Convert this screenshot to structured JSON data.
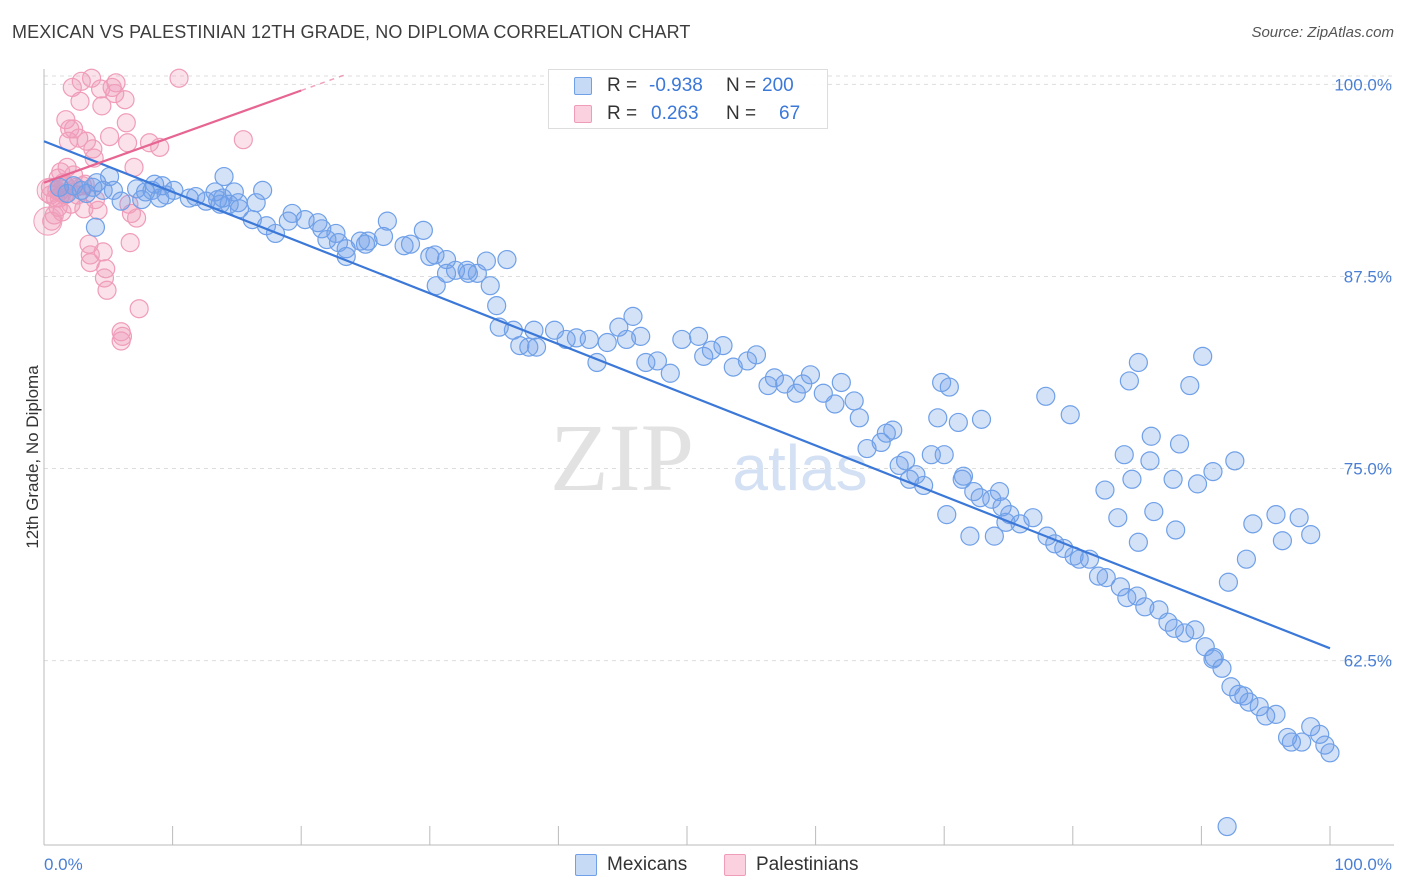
{
  "title": "MEXICAN VS PALESTINIAN 12TH GRADE, NO DIPLOMA CORRELATION CHART",
  "source": "Source: ZipAtlas.com",
  "watermark": {
    "zip": "ZIP",
    "atlas": "atlas"
  },
  "colors": {
    "mexicans": "#6fa0e8",
    "mexicans_line": "#3b78d8",
    "palestinians": "#f09cb9",
    "palestinians_line": "#e66592",
    "axis_text": "#4a7fd4",
    "grid": "#dddddd"
  },
  "stats": [
    {
      "r_label": "R =",
      "r_value": "-0.938",
      "n_label": "N =",
      "n_value": "200"
    },
    {
      "r_label": "R =",
      "r_value": "0.263",
      "n_label": "N =",
      "n_value": "67"
    }
  ],
  "legend": [
    "Mexicans",
    "Palestinians"
  ],
  "chart_data": {
    "type": "scatter",
    "title": "MEXICAN VS PALESTINIAN 12TH GRADE, NO DIPLOMA CORRELATION CHART",
    "xlabel": "",
    "ylabel": "12th Grade, No Diploma",
    "xlim": [
      0,
      100
    ],
    "ylim": [
      50.5,
      101
    ],
    "x_tick_labels": [
      "0.0%",
      "100.0%"
    ],
    "y_ticks": [
      62.5,
      75.0,
      87.5,
      100.0
    ],
    "y_tick_labels": [
      "62.5%",
      "75.0%",
      "87.5%",
      "100.0%"
    ],
    "grid": true,
    "legend_position": "bottom-center",
    "series": [
      {
        "name": "Mexicans",
        "r": -0.938,
        "n": 200,
        "trend": {
          "x": [
            0,
            100
          ],
          "y": [
            96.3,
            63.3
          ]
        },
        "points": [
          [
            1.2,
            93.3
          ],
          [
            1.8,
            92.9
          ],
          [
            2.3,
            93.4
          ],
          [
            2.9,
            93.1
          ],
          [
            3.3,
            92.9
          ],
          [
            3.8,
            93.3
          ],
          [
            4.1,
            93.6
          ],
          [
            4.6,
            93.1
          ],
          [
            5.1,
            94.0
          ],
          [
            4.0,
            90.7
          ],
          [
            5.4,
            93.1
          ],
          [
            6.0,
            92.4
          ],
          [
            7.2,
            93.2
          ],
          [
            7.6,
            92.5
          ],
          [
            7.9,
            93.0
          ],
          [
            8.4,
            93.1
          ],
          [
            8.6,
            93.5
          ],
          [
            9.0,
            92.6
          ],
          [
            9.2,
            93.4
          ],
          [
            10.1,
            93.1
          ],
          [
            9.5,
            92.8
          ],
          [
            11.3,
            92.6
          ],
          [
            11.8,
            92.7
          ],
          [
            12.6,
            92.4
          ],
          [
            13.3,
            93.0
          ],
          [
            13.9,
            92.6
          ],
          [
            13.5,
            92.5
          ],
          [
            14.8,
            93.0
          ],
          [
            15.1,
            92.3
          ],
          [
            15.2,
            91.9
          ],
          [
            13.7,
            92.2
          ],
          [
            14.4,
            92.2
          ],
          [
            14.0,
            94.0
          ],
          [
            16.2,
            91.2
          ],
          [
            16.5,
            92.3
          ],
          [
            17.3,
            90.8
          ],
          [
            18.0,
            90.3
          ],
          [
            19.0,
            91.1
          ],
          [
            17.0,
            93.1
          ],
          [
            19.3,
            91.6
          ],
          [
            21.3,
            91.0
          ],
          [
            21.6,
            90.6
          ],
          [
            20.3,
            91.2
          ],
          [
            22.7,
            90.3
          ],
          [
            22.0,
            89.9
          ],
          [
            22.9,
            89.7
          ],
          [
            23.5,
            89.3
          ],
          [
            23.5,
            88.8
          ],
          [
            24.6,
            89.8
          ],
          [
            25.2,
            89.8
          ],
          [
            25.0,
            89.6
          ],
          [
            26.4,
            90.1
          ],
          [
            26.7,
            91.1
          ],
          [
            28.0,
            89.5
          ],
          [
            28.5,
            89.6
          ],
          [
            30.0,
            88.8
          ],
          [
            31.3,
            88.6
          ],
          [
            29.5,
            90.5
          ],
          [
            30.4,
            88.9
          ],
          [
            31.3,
            87.7
          ],
          [
            32.0,
            87.9
          ],
          [
            33.0,
            87.7
          ],
          [
            32.9,
            87.9
          ],
          [
            33.7,
            87.7
          ],
          [
            34.4,
            88.5
          ],
          [
            36.0,
            88.6
          ],
          [
            34.7,
            86.9
          ],
          [
            30.5,
            86.9
          ],
          [
            35.2,
            85.6
          ],
          [
            35.4,
            84.2
          ],
          [
            36.5,
            84.0
          ],
          [
            37.0,
            83.0
          ],
          [
            37.7,
            82.9
          ],
          [
            38.1,
            84.0
          ],
          [
            38.3,
            82.9
          ],
          [
            39.7,
            84.0
          ],
          [
            40.6,
            83.4
          ],
          [
            41.4,
            83.5
          ],
          [
            42.4,
            83.4
          ],
          [
            43.0,
            81.9
          ],
          [
            43.8,
            83.2
          ],
          [
            44.7,
            84.2
          ],
          [
            45.3,
            83.4
          ],
          [
            45.8,
            84.9
          ],
          [
            46.4,
            83.6
          ],
          [
            46.8,
            81.9
          ],
          [
            47.7,
            82.0
          ],
          [
            48.7,
            81.2
          ],
          [
            49.6,
            83.4
          ],
          [
            50.9,
            83.6
          ],
          [
            51.3,
            82.3
          ],
          [
            51.9,
            82.7
          ],
          [
            52.8,
            83.0
          ],
          [
            53.6,
            81.6
          ],
          [
            54.7,
            82.0
          ],
          [
            55.4,
            82.4
          ],
          [
            56.3,
            80.4
          ],
          [
            56.8,
            80.9
          ],
          [
            57.6,
            80.5
          ],
          [
            58.5,
            79.9
          ],
          [
            59.0,
            80.5
          ],
          [
            59.6,
            81.1
          ],
          [
            60.6,
            79.9
          ],
          [
            61.5,
            79.2
          ],
          [
            62.0,
            80.6
          ],
          [
            63.0,
            79.4
          ],
          [
            63.4,
            78.3
          ],
          [
            64.0,
            76.3
          ],
          [
            65.1,
            76.7
          ],
          [
            65.5,
            77.3
          ],
          [
            66.0,
            77.5
          ],
          [
            66.5,
            75.2
          ],
          [
            67.0,
            75.5
          ],
          [
            67.3,
            74.3
          ],
          [
            67.8,
            74.6
          ],
          [
            68.4,
            73.9
          ],
          [
            69.0,
            75.9
          ],
          [
            70.0,
            75.9
          ],
          [
            71.4,
            74.3
          ],
          [
            72.3,
            73.5
          ],
          [
            72.8,
            73.1
          ],
          [
            73.7,
            73.0
          ],
          [
            74.5,
            72.5
          ],
          [
            75.1,
            72.0
          ],
          [
            75.9,
            71.4
          ],
          [
            76.9,
            71.8
          ],
          [
            78.0,
            70.6
          ],
          [
            78.6,
            70.1
          ],
          [
            79.3,
            69.8
          ],
          [
            80.1,
            69.3
          ],
          [
            80.5,
            69.1
          ],
          [
            81.3,
            69.1
          ],
          [
            82.0,
            68.0
          ],
          [
            82.6,
            67.9
          ],
          [
            83.7,
            67.3
          ],
          [
            84.2,
            66.6
          ],
          [
            85.0,
            66.7
          ],
          [
            85.6,
            66.0
          ],
          [
            86.7,
            65.8
          ],
          [
            87.4,
            65.0
          ],
          [
            87.9,
            64.6
          ],
          [
            88.7,
            64.3
          ],
          [
            89.5,
            64.5
          ],
          [
            90.3,
            63.4
          ],
          [
            91.0,
            62.7
          ],
          [
            91.6,
            62.0
          ],
          [
            92.3,
            60.8
          ],
          [
            92.9,
            60.3
          ],
          [
            93.3,
            60.2
          ],
          [
            93.7,
            59.8
          ],
          [
            94.5,
            59.5
          ],
          [
            95.0,
            58.9
          ],
          [
            95.8,
            59.0
          ],
          [
            96.7,
            57.5
          ],
          [
            97.0,
            57.2
          ],
          [
            97.8,
            57.2
          ],
          [
            98.5,
            58.2
          ],
          [
            99.2,
            57.7
          ],
          [
            99.6,
            57.0
          ],
          [
            100.0,
            56.5
          ],
          [
            84.6,
            74.3
          ],
          [
            87.8,
            74.3
          ],
          [
            89.7,
            74.0
          ],
          [
            90.9,
            74.8
          ],
          [
            92.6,
            75.5
          ],
          [
            95.8,
            72.0
          ],
          [
            97.6,
            71.8
          ],
          [
            98.5,
            70.7
          ],
          [
            94.0,
            71.4
          ],
          [
            93.5,
            69.1
          ],
          [
            92.1,
            67.6
          ],
          [
            96.3,
            70.3
          ],
          [
            88.0,
            71.0
          ],
          [
            86.3,
            72.2
          ],
          [
            85.1,
            70.2
          ],
          [
            83.5,
            71.8
          ],
          [
            82.5,
            73.6
          ],
          [
            84.0,
            75.9
          ],
          [
            86.0,
            75.5
          ],
          [
            89.1,
            80.4
          ],
          [
            88.3,
            76.6
          ],
          [
            86.1,
            77.1
          ],
          [
            90.1,
            82.3
          ],
          [
            85.1,
            81.9
          ],
          [
            84.4,
            80.7
          ],
          [
            79.8,
            78.5
          ],
          [
            77.9,
            79.7
          ],
          [
            70.4,
            80.3
          ],
          [
            69.8,
            80.6
          ],
          [
            71.1,
            78.0
          ],
          [
            69.5,
            78.3
          ],
          [
            72.9,
            78.2
          ],
          [
            74.3,
            73.5
          ],
          [
            74.8,
            71.5
          ],
          [
            73.9,
            70.6
          ],
          [
            72.0,
            70.6
          ],
          [
            70.2,
            72.0
          ],
          [
            71.5,
            74.5
          ],
          [
            90.9,
            62.6
          ],
          [
            92.0,
            51.7
          ]
        ]
      },
      {
        "name": "Palestinians",
        "r": 0.263,
        "n": 67,
        "trend": {
          "x": [
            0,
            20
          ],
          "y": [
            93.6,
            99.6
          ]
        },
        "points": [
          [
            0.5,
            93.3
          ],
          [
            0.5,
            92.8
          ],
          [
            0.6,
            91.1
          ],
          [
            0.8,
            91.5
          ],
          [
            0.9,
            92.6
          ],
          [
            1.0,
            93.1
          ],
          [
            1.1,
            92.0
          ],
          [
            1.1,
            93.9
          ],
          [
            1.2,
            92.6
          ],
          [
            1.2,
            93.0
          ],
          [
            1.3,
            94.3
          ],
          [
            1.4,
            91.7
          ],
          [
            1.4,
            92.9
          ],
          [
            1.5,
            93.6
          ],
          [
            1.6,
            92.8
          ],
          [
            1.7,
            97.7
          ],
          [
            1.7,
            93.4
          ],
          [
            1.8,
            94.6
          ],
          [
            1.9,
            96.3
          ],
          [
            2.0,
            97.1
          ],
          [
            2.1,
            92.2
          ],
          [
            2.2,
            99.8
          ],
          [
            2.3,
            97.1
          ],
          [
            2.3,
            94.1
          ],
          [
            2.5,
            93.3
          ],
          [
            2.6,
            92.8
          ],
          [
            2.7,
            96.5
          ],
          [
            2.8,
            98.9
          ],
          [
            2.9,
            100.2
          ],
          [
            3.0,
            93.4
          ],
          [
            3.1,
            91.9
          ],
          [
            3.2,
            93.5
          ],
          [
            3.3,
            96.3
          ],
          [
            3.5,
            89.6
          ],
          [
            3.6,
            88.9
          ],
          [
            3.6,
            88.4
          ],
          [
            3.7,
            100.4
          ],
          [
            3.8,
            95.8
          ],
          [
            3.9,
            95.2
          ],
          [
            4.0,
            92.5
          ],
          [
            4.2,
            91.8
          ],
          [
            4.4,
            99.7
          ],
          [
            4.5,
            98.6
          ],
          [
            4.6,
            89.1
          ],
          [
            4.7,
            87.4
          ],
          [
            4.8,
            88.0
          ],
          [
            4.9,
            86.6
          ],
          [
            5.1,
            96.6
          ],
          [
            5.3,
            99.8
          ],
          [
            5.5,
            99.4
          ],
          [
            5.6,
            100.1
          ],
          [
            6.0,
            83.3
          ],
          [
            6.0,
            83.9
          ],
          [
            6.1,
            83.6
          ],
          [
            6.3,
            99.0
          ],
          [
            6.4,
            97.5
          ],
          [
            6.5,
            96.2
          ],
          [
            6.6,
            92.2
          ],
          [
            6.7,
            89.7
          ],
          [
            6.8,
            91.6
          ],
          [
            7.2,
            91.3
          ],
          [
            7.4,
            85.4
          ],
          [
            7.0,
            94.6
          ],
          [
            8.2,
            96.2
          ],
          [
            9.0,
            95.9
          ],
          [
            10.5,
            100.4
          ],
          [
            15.5,
            96.4
          ]
        ]
      }
    ]
  }
}
